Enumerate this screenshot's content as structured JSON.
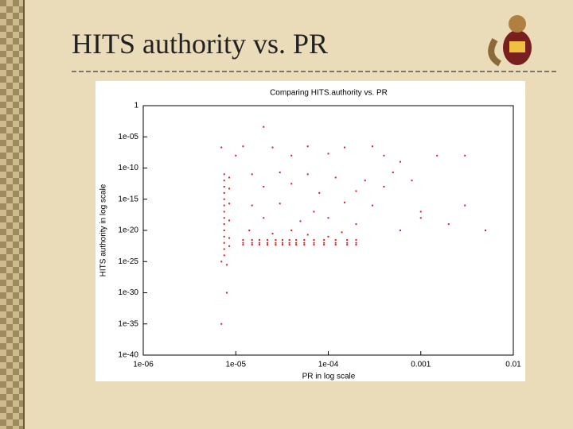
{
  "title": "HITS authority vs. PR",
  "chart_data": {
    "type": "scatter",
    "title": "Comparing HITS.authority vs. PR",
    "x_label": "PR in log scale",
    "y_label": "HITS authority in log scale",
    "xlog": true,
    "ylog": true,
    "color": "#d42020",
    "xlim": [
      1e-06,
      0.01
    ],
    "ylim": [
      1e-40,
      1
    ],
    "xticks": [
      {
        "value": 1e-06,
        "label": "1e-06"
      },
      {
        "value": 1e-05,
        "label": "1e-05"
      },
      {
        "value": 0.0001,
        "label": "1e-04"
      },
      0.001,
      0.01
    ],
    "yticks": [
      1,
      {
        "value": 1e-05,
        "label": "1e-05"
      },
      {
        "value": 1e-10,
        "label": "1e-10"
      },
      {
        "value": 1e-15,
        "label": "1e-15"
      },
      {
        "value": 1e-20,
        "label": "1e-20"
      },
      {
        "value": 1e-25,
        "label": "1e-25"
      },
      {
        "value": 1e-30,
        "label": "1e-30"
      },
      {
        "value": 1e-35,
        "label": "1e-35"
      },
      {
        "value": 1e-40,
        "label": "1e-40"
      }
    ],
    "x": [
      7.5e-06,
      7.5e-06,
      7.5e-06,
      7.5e-06,
      7.5e-06,
      7.5e-06,
      7.5e-06,
      7.5e-06,
      7.5e-06,
      7.5e-06,
      7.5e-06,
      7.5e-06,
      7.5e-06,
      7.5e-06,
      8.5e-06,
      8.5e-06,
      8.5e-06,
      8.5e-06,
      8.5e-06,
      8.5e-06,
      2e-05,
      7e-06,
      1.2e-05,
      2.5e-05,
      6e-05,
      0.00015,
      0.0003,
      1e-05,
      4e-05,
      0.0001,
      0.0004,
      0.0015,
      0.003,
      0.0006,
      1.5e-05,
      3e-05,
      6e-05,
      0.00012,
      0.00025,
      0.0005,
      2e-05,
      4e-05,
      8e-05,
      0.0002,
      0.0004,
      0.0008,
      1.5e-05,
      3e-05,
      7e-05,
      0.00015,
      0.0003,
      0.001,
      2e-05,
      5e-05,
      0.0001,
      0.0002,
      0.0006,
      1.2e-05,
      1.2e-05,
      1.2e-05,
      1.5e-05,
      1.5e-05,
      1.5e-05,
      1.8e-05,
      1.8e-05,
      1.8e-05,
      2.2e-05,
      2.2e-05,
      2.2e-05,
      2.7e-05,
      2.7e-05,
      2.7e-05,
      3.2e-05,
      3.2e-05,
      3.2e-05,
      3.8e-05,
      3.8e-05,
      3.8e-05,
      4.5e-05,
      4.5e-05,
      4.5e-05,
      5.5e-05,
      5.5e-05,
      5.5e-05,
      7e-05,
      7e-05,
      7e-05,
      9e-05,
      9e-05,
      9e-05,
      0.00012,
      0.00012,
      0.00012,
      0.00016,
      0.00016,
      0.00016,
      0.0002,
      0.0002,
      0.0002,
      1.4e-05,
      2.5e-05,
      4e-05,
      6e-05,
      0.0001,
      0.00014,
      7e-06,
      8e-06,
      8e-06,
      7e-06,
      0.003,
      0.005,
      0.002,
      0.001
    ],
    "y": [
      1e-11,
      1e-12,
      1e-13,
      1e-14,
      1e-15,
      1e-16,
      1e-17,
      1e-18,
      1e-19,
      1e-20,
      1e-21,
      1e-22,
      1e-23,
      1e-24,
      3e-12,
      5e-14,
      2e-16,
      4e-19,
      6e-22,
      3e-23,
      0.0004,
      2e-07,
      3e-07,
      2e-07,
      3e-07,
      2e-07,
      3e-07,
      1e-08,
      1e-08,
      2e-08,
      1e-08,
      1e-08,
      1e-08,
      1e-09,
      1e-11,
      2e-11,
      1e-11,
      3e-12,
      1e-12,
      2e-11,
      1e-13,
      3e-13,
      1e-14,
      2e-14,
      1e-13,
      1e-12,
      1e-16,
      2e-16,
      1e-17,
      3e-16,
      1e-16,
      1e-17,
      1e-18,
      3e-19,
      1e-18,
      1e-19,
      1e-20,
      3e-22,
      1e-22,
      5e-23,
      3e-22,
      1e-22,
      5e-23,
      3e-22,
      1e-22,
      5e-23,
      3e-22,
      1e-22,
      5e-23,
      3e-22,
      1e-22,
      5e-23,
      3e-22,
      1e-22,
      5e-23,
      3e-22,
      1e-22,
      5e-23,
      3e-22,
      1e-22,
      5e-23,
      3e-22,
      1e-22,
      5e-23,
      3e-22,
      1e-22,
      5e-23,
      3e-22,
      1e-22,
      5e-23,
      3e-22,
      1e-22,
      5e-23,
      3e-22,
      1e-22,
      5e-23,
      3e-22,
      1e-22,
      5e-23,
      1e-20,
      3e-21,
      1e-20,
      2e-21,
      1e-21,
      5e-21,
      1e-25,
      3e-26,
      1e-30,
      1e-35,
      1e-16,
      1e-20,
      1e-19,
      1e-18
    ]
  }
}
